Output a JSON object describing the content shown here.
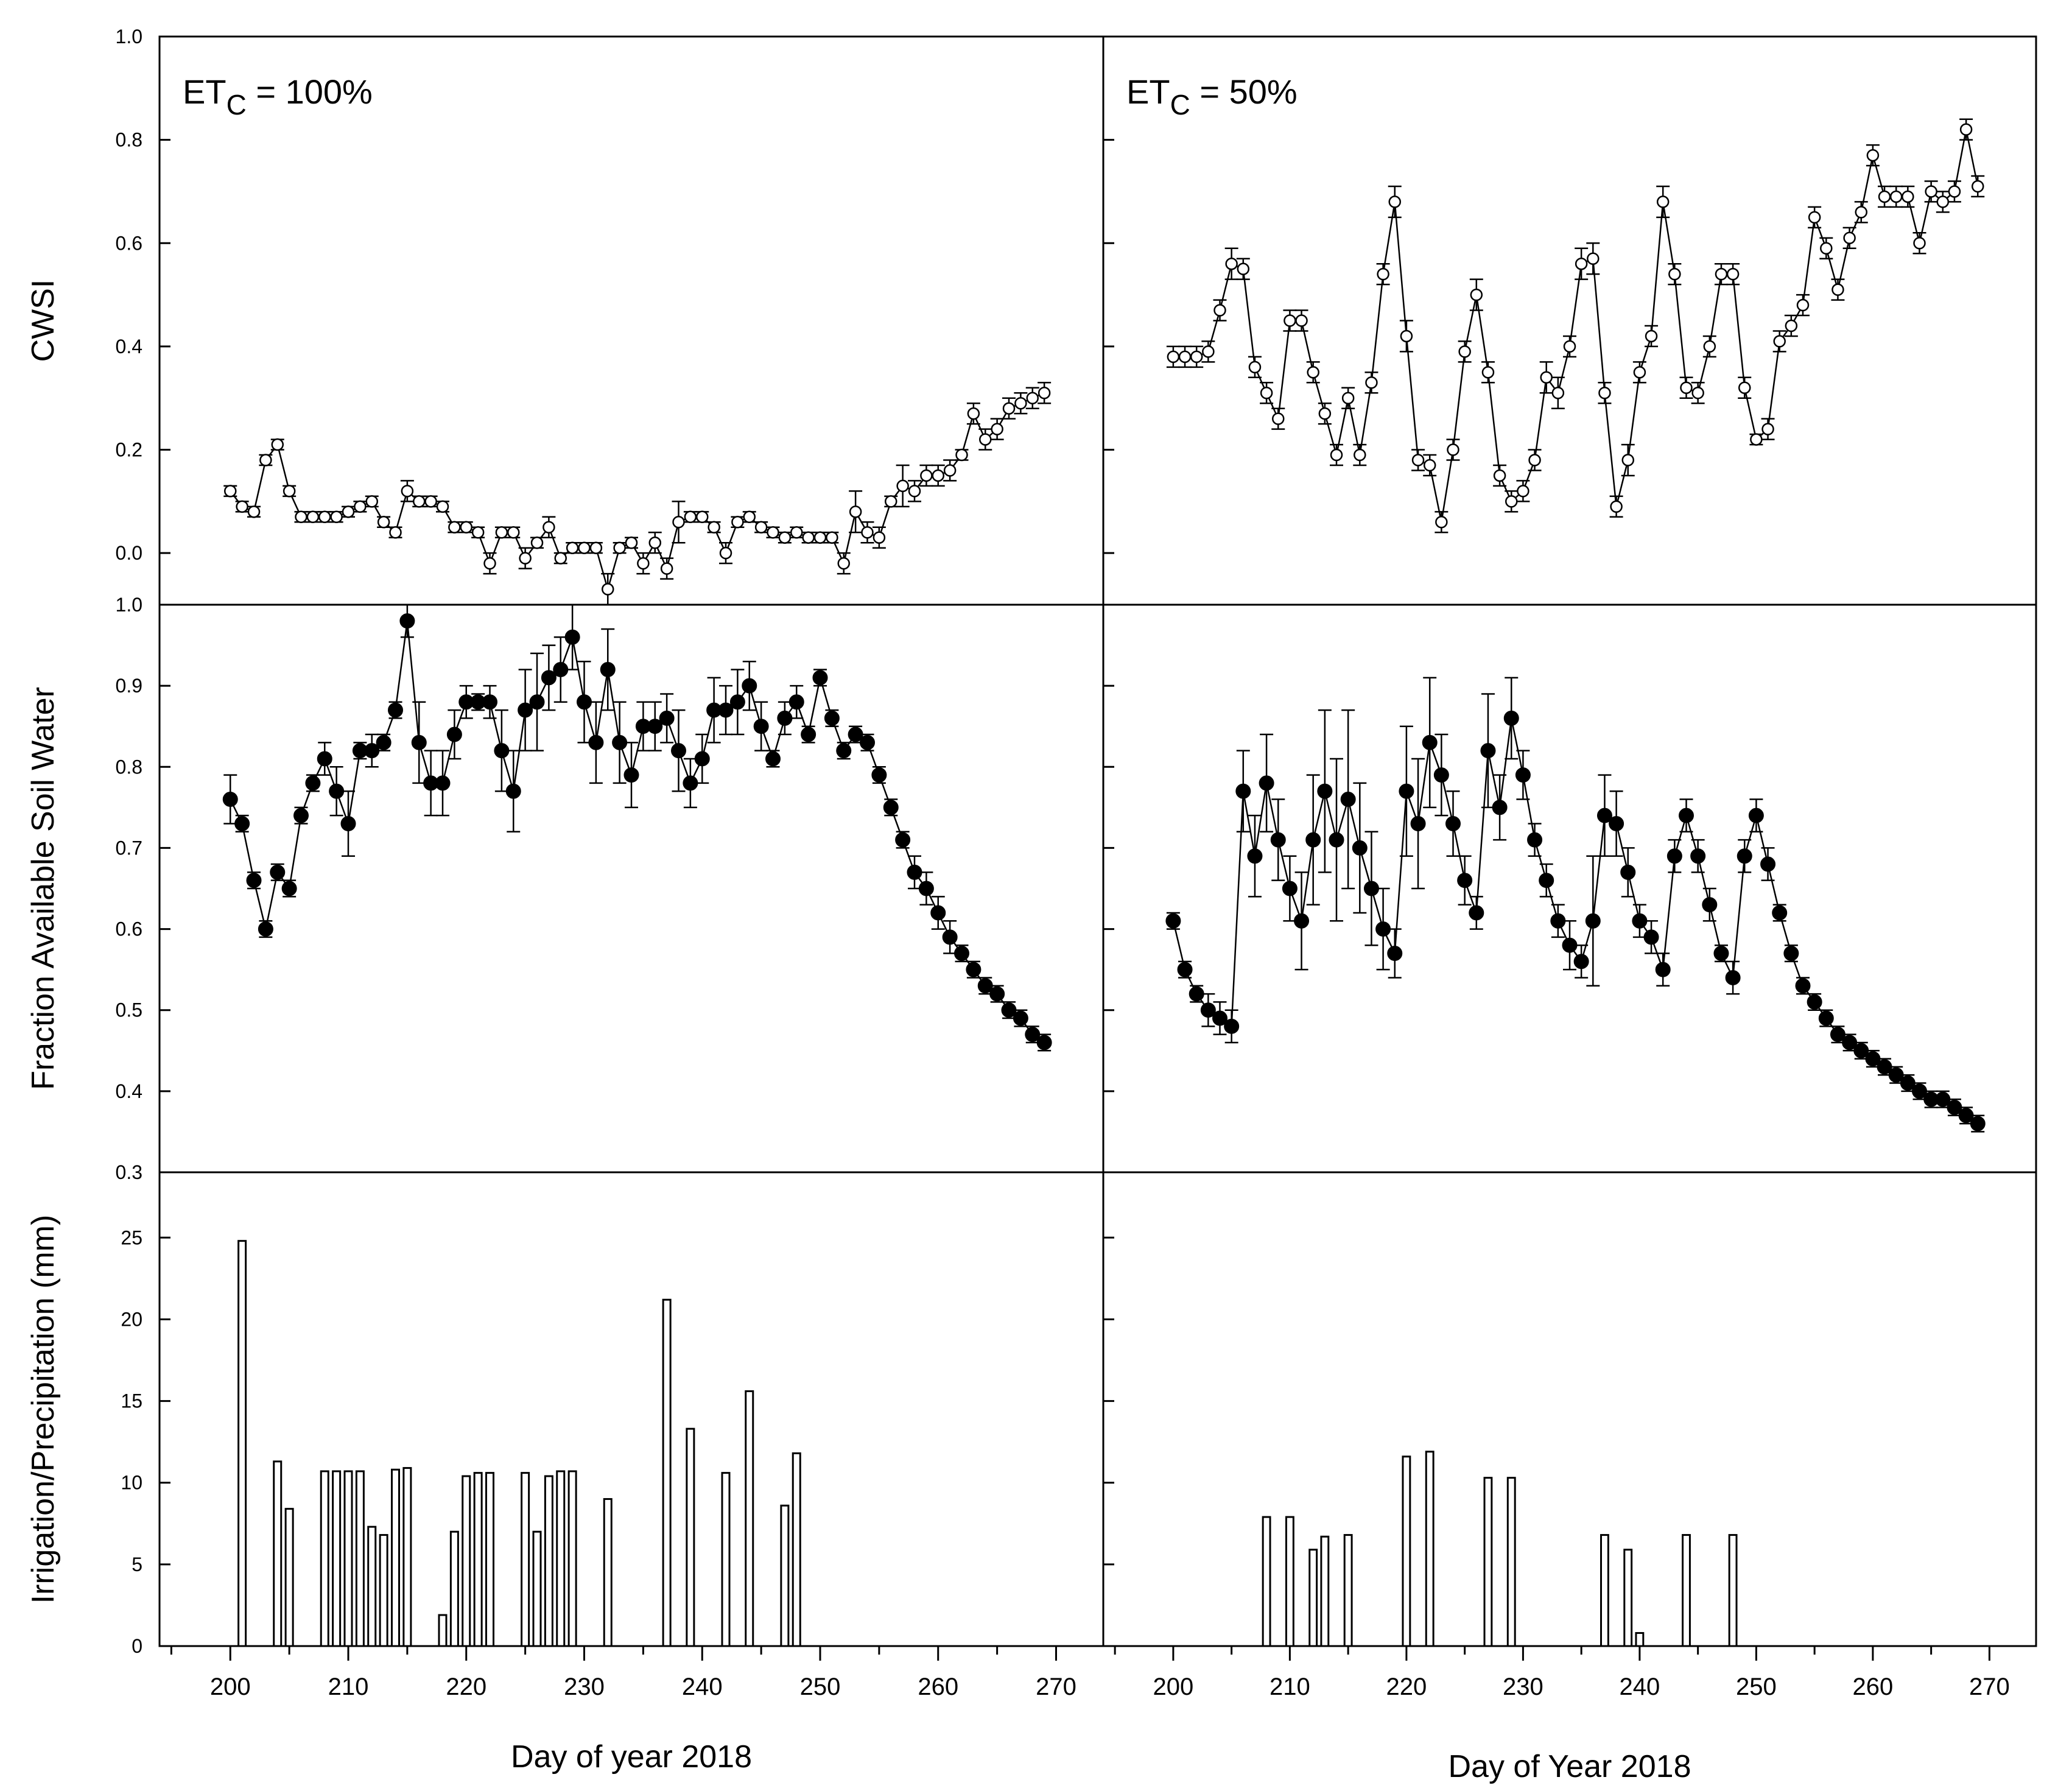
{
  "chart_data": {
    "type": "multi-panel",
    "x_range": [
      194,
      274
    ],
    "x_ticks": [
      200,
      210,
      220,
      230,
      240,
      250,
      260,
      270
    ],
    "column_labels": [
      {
        "base": "ET",
        "sub": "C",
        "rest": " = 100%"
      },
      {
        "base": "ET",
        "sub": "C",
        "rest": " = 50%"
      }
    ],
    "column_xlabels": [
      "Day of year 2018",
      "Day of Year 2018"
    ],
    "rows": [
      {
        "key": "cwsi",
        "type": "line",
        "ylabel": "CWSI",
        "ylim": [
          -0.1,
          1.0
        ],
        "y_ticks": [
          0.0,
          0.2,
          0.4,
          0.6,
          0.8,
          1.0
        ],
        "y_tick_labels": [
          "0.0",
          "0.2",
          "0.4",
          "0.6",
          "0.8",
          "1.0"
        ],
        "marker": "open-circle"
      },
      {
        "key": "fasw",
        "type": "line",
        "ylabel": "Fraction Available Soil Water",
        "ylim": [
          0.3,
          1.0
        ],
        "y_ticks": [
          0.3,
          0.4,
          0.5,
          0.6,
          0.7,
          0.8,
          0.9,
          1.0
        ],
        "y_tick_labels": [
          "0.3",
          "0.4",
          "0.5",
          "0.6",
          "0.7",
          "0.8",
          "0.9",
          "1.0"
        ],
        "marker": "filled-circle"
      },
      {
        "key": "irr",
        "type": "bar",
        "ylabel": "Irrigation/Precipitation (mm)",
        "ylim": [
          0,
          29
        ],
        "y_ticks": [
          0,
          5,
          10,
          15,
          20,
          25
        ],
        "y_tick_labels": [
          "0",
          "5",
          "10",
          "15",
          "20",
          "25"
        ]
      }
    ],
    "series": {
      "cwsi_100": {
        "x": [
          200,
          201,
          202,
          203,
          204,
          205,
          206,
          207,
          208,
          209,
          210,
          211,
          212,
          213,
          214,
          215,
          216,
          217,
          218,
          219,
          220,
          221,
          222,
          223,
          224,
          225,
          226,
          227,
          228,
          229,
          230,
          231,
          232,
          233,
          234,
          235,
          236,
          237,
          238,
          239,
          240,
          241,
          242,
          243,
          244,
          245,
          246,
          247,
          248,
          249,
          250,
          251,
          252,
          253,
          254,
          255,
          256,
          257,
          258,
          259,
          260,
          261,
          262,
          263,
          264,
          265,
          266,
          267,
          268,
          269
        ],
        "y": [
          0.12,
          0.09,
          0.08,
          0.18,
          0.21,
          0.12,
          0.07,
          0.07,
          0.07,
          0.07,
          0.08,
          0.09,
          0.1,
          0.06,
          0.04,
          0.12,
          0.1,
          0.1,
          0.09,
          0.05,
          0.05,
          0.04,
          -0.02,
          0.04,
          0.04,
          -0.01,
          0.02,
          0.05,
          -0.01,
          0.01,
          0.01,
          0.01,
          -0.07,
          0.01,
          0.02,
          -0.02,
          0.02,
          -0.03,
          0.06,
          0.07,
          0.07,
          0.05,
          0.0,
          0.06,
          0.07,
          0.05,
          0.04,
          0.03,
          0.04,
          0.03,
          0.03,
          0.03,
          -0.02,
          0.08,
          0.04,
          0.03,
          0.1,
          0.13,
          0.12,
          0.15,
          0.15,
          0.16,
          0.19,
          0.27,
          0.22,
          0.24,
          0.28,
          0.29,
          0.3,
          0.31
        ],
        "err": [
          0.01,
          0.01,
          0.01,
          0.01,
          0.01,
          0.01,
          0.01,
          0.01,
          0.01,
          0.01,
          0.01,
          0.01,
          0.01,
          0.01,
          0.01,
          0.02,
          0.01,
          0.01,
          0.01,
          0.01,
          0.01,
          0.01,
          0.02,
          0.01,
          0.01,
          0.02,
          0.01,
          0.02,
          0.01,
          0.01,
          0.01,
          0.01,
          0.03,
          0.01,
          0.01,
          0.02,
          0.02,
          0.02,
          0.04,
          0.01,
          0.01,
          0.01,
          0.02,
          0.01,
          0.01,
          0.01,
          0.01,
          0.01,
          0.01,
          0.01,
          0.01,
          0.01,
          0.02,
          0.04,
          0.02,
          0.02,
          0.01,
          0.04,
          0.02,
          0.02,
          0.02,
          0.02,
          0.01,
          0.02,
          0.02,
          0.02,
          0.02,
          0.02,
          0.02,
          0.02
        ]
      },
      "cwsi_50": {
        "x": [
          200,
          201,
          202,
          203,
          204,
          205,
          206,
          207,
          208,
          209,
          210,
          211,
          212,
          213,
          214,
          215,
          216,
          217,
          218,
          219,
          220,
          221,
          222,
          223,
          224,
          225,
          226,
          227,
          228,
          229,
          230,
          231,
          232,
          233,
          234,
          235,
          236,
          237,
          238,
          239,
          240,
          241,
          242,
          243,
          244,
          245,
          246,
          247,
          248,
          249,
          250,
          251,
          252,
          253,
          254,
          255,
          256,
          257,
          258,
          259,
          260,
          261,
          262,
          263,
          264,
          265,
          266,
          267,
          268,
          269
        ],
        "y": [
          0.38,
          0.38,
          0.38,
          0.39,
          0.47,
          0.56,
          0.55,
          0.36,
          0.31,
          0.26,
          0.45,
          0.45,
          0.35,
          0.27,
          0.19,
          0.3,
          0.19,
          0.33,
          0.54,
          0.68,
          0.42,
          0.18,
          0.17,
          0.06,
          0.2,
          0.39,
          0.5,
          0.35,
          0.15,
          0.1,
          0.12,
          0.18,
          0.34,
          0.31,
          0.4,
          0.56,
          0.57,
          0.31,
          0.09,
          0.18,
          0.35,
          0.42,
          0.68,
          0.54,
          0.32,
          0.31,
          0.4,
          0.54,
          0.54,
          0.32,
          0.22,
          0.24,
          0.41,
          0.44,
          0.48,
          0.65,
          0.59,
          0.51,
          0.61,
          0.66,
          0.77,
          0.69,
          0.69,
          0.69,
          0.6,
          0.7,
          0.68,
          0.7,
          0.82,
          0.71
        ],
        "err": [
          0.02,
          0.02,
          0.02,
          0.02,
          0.02,
          0.03,
          0.02,
          0.02,
          0.02,
          0.02,
          0.02,
          0.02,
          0.02,
          0.02,
          0.02,
          0.02,
          0.02,
          0.02,
          0.02,
          0.03,
          0.03,
          0.02,
          0.02,
          0.02,
          0.02,
          0.02,
          0.03,
          0.02,
          0.02,
          0.02,
          0.02,
          0.02,
          0.03,
          0.03,
          0.02,
          0.03,
          0.03,
          0.02,
          0.02,
          0.03,
          0.02,
          0.02,
          0.03,
          0.02,
          0.02,
          0.02,
          0.02,
          0.02,
          0.02,
          0.02,
          0.01,
          0.02,
          0.02,
          0.02,
          0.02,
          0.02,
          0.02,
          0.02,
          0.02,
          0.02,
          0.02,
          0.02,
          0.02,
          0.02,
          0.02,
          0.02,
          0.02,
          0.02,
          0.02,
          0.02
        ]
      },
      "fasw_100": {
        "x": [
          200,
          201,
          202,
          203,
          204,
          205,
          206,
          207,
          208,
          209,
          210,
          211,
          212,
          213,
          214,
          215,
          216,
          217,
          218,
          219,
          220,
          221,
          222,
          223,
          224,
          225,
          226,
          227,
          228,
          229,
          230,
          231,
          232,
          233,
          234,
          235,
          236,
          237,
          238,
          239,
          240,
          241,
          242,
          243,
          244,
          245,
          246,
          247,
          248,
          249,
          250,
          251,
          252,
          253,
          254,
          255,
          256,
          257,
          258,
          259,
          260,
          261,
          262,
          263,
          264,
          265,
          266,
          267,
          268,
          269
        ],
        "y": [
          0.76,
          0.73,
          0.66,
          0.6,
          0.67,
          0.65,
          0.74,
          0.78,
          0.81,
          0.77,
          0.73,
          0.82,
          0.82,
          0.83,
          0.87,
          0.98,
          0.83,
          0.78,
          0.78,
          0.84,
          0.88,
          0.88,
          0.88,
          0.82,
          0.77,
          0.87,
          0.88,
          0.91,
          0.92,
          0.96,
          0.88,
          0.83,
          0.92,
          0.83,
          0.79,
          0.85,
          0.85,
          0.86,
          0.82,
          0.78,
          0.81,
          0.87,
          0.87,
          0.88,
          0.9,
          0.85,
          0.81,
          0.86,
          0.88,
          0.84,
          0.91,
          0.86,
          0.82,
          0.84,
          0.83,
          0.79,
          0.75,
          0.71,
          0.67,
          0.65,
          0.62,
          0.59,
          0.57,
          0.55,
          0.53,
          0.52,
          0.5,
          0.49,
          0.47,
          0.46
        ],
        "err": [
          0.03,
          0.01,
          0.01,
          0.01,
          0.01,
          0.01,
          0.01,
          0.01,
          0.02,
          0.03,
          0.04,
          0.01,
          0.02,
          0.01,
          0.01,
          0.02,
          0.05,
          0.04,
          0.04,
          0.03,
          0.02,
          0.01,
          0.02,
          0.05,
          0.05,
          0.05,
          0.06,
          0.04,
          0.04,
          0.04,
          0.05,
          0.05,
          0.05,
          0.05,
          0.04,
          0.03,
          0.03,
          0.03,
          0.05,
          0.03,
          0.03,
          0.04,
          0.03,
          0.04,
          0.03,
          0.03,
          0.01,
          0.02,
          0.02,
          0.01,
          0.01,
          0.01,
          0.01,
          0.01,
          0.01,
          0.01,
          0.01,
          0.01,
          0.02,
          0.02,
          0.02,
          0.02,
          0.01,
          0.01,
          0.01,
          0.01,
          0.01,
          0.01,
          0.01,
          0.01
        ]
      },
      "fasw_50": {
        "x": [
          200,
          201,
          202,
          203,
          204,
          205,
          206,
          207,
          208,
          209,
          210,
          211,
          212,
          213,
          214,
          215,
          216,
          217,
          218,
          219,
          220,
          221,
          222,
          223,
          224,
          225,
          226,
          227,
          228,
          229,
          230,
          231,
          232,
          233,
          234,
          235,
          236,
          237,
          238,
          239,
          240,
          241,
          242,
          243,
          244,
          245,
          246,
          247,
          248,
          249,
          250,
          251,
          252,
          253,
          254,
          255,
          256,
          257,
          258,
          259,
          260,
          261,
          262,
          263,
          264,
          265,
          266,
          267,
          268,
          269
        ],
        "y": [
          0.61,
          0.55,
          0.52,
          0.5,
          0.49,
          0.48,
          0.77,
          0.69,
          0.78,
          0.71,
          0.65,
          0.61,
          0.71,
          0.77,
          0.71,
          0.76,
          0.7,
          0.65,
          0.6,
          0.57,
          0.77,
          0.73,
          0.83,
          0.79,
          0.73,
          0.66,
          0.62,
          0.82,
          0.75,
          0.86,
          0.79,
          0.71,
          0.66,
          0.61,
          0.58,
          0.56,
          0.61,
          0.74,
          0.73,
          0.67,
          0.61,
          0.59,
          0.55,
          0.69,
          0.74,
          0.69,
          0.63,
          0.57,
          0.54,
          0.69,
          0.74,
          0.68,
          0.62,
          0.57,
          0.53,
          0.51,
          0.49,
          0.47,
          0.46,
          0.45,
          0.44,
          0.43,
          0.42,
          0.41,
          0.4,
          0.39,
          0.39,
          0.38,
          0.37,
          0.36
        ],
        "err": [
          0.01,
          0.01,
          0.01,
          0.02,
          0.02,
          0.02,
          0.05,
          0.05,
          0.06,
          0.05,
          0.04,
          0.06,
          0.08,
          0.1,
          0.1,
          0.11,
          0.08,
          0.07,
          0.05,
          0.03,
          0.08,
          0.08,
          0.08,
          0.05,
          0.04,
          0.03,
          0.02,
          0.07,
          0.04,
          0.05,
          0.03,
          0.02,
          0.02,
          0.02,
          0.03,
          0.02,
          0.08,
          0.05,
          0.04,
          0.03,
          0.02,
          0.02,
          0.02,
          0.02,
          0.02,
          0.02,
          0.02,
          0.01,
          0.02,
          0.02,
          0.02,
          0.02,
          0.01,
          0.01,
          0.01,
          0.01,
          0.01,
          0.01,
          0.01,
          0.01,
          0.01,
          0.01,
          0.01,
          0.01,
          0.01,
          0.01,
          0.01,
          0.01,
          0.01,
          0.01
        ]
      },
      "irr_100": {
        "x": [
          201,
          204,
          205,
          208,
          209,
          210,
          211,
          212,
          213,
          214,
          215,
          218,
          219,
          220,
          221,
          222,
          225,
          226,
          227,
          228,
          229,
          232,
          237,
          239,
          242,
          244,
          247,
          248
        ],
        "y": [
          24.8,
          11.3,
          8.4,
          10.7,
          10.7,
          10.7,
          10.7,
          7.3,
          6.8,
          10.8,
          10.9,
          1.9,
          7.0,
          10.4,
          10.6,
          10.6,
          10.6,
          7.0,
          10.4,
          10.7,
          10.7,
          9.0,
          21.2,
          13.3,
          10.6,
          15.6,
          8.6,
          11.8
        ]
      },
      "irr_50": {
        "x": [
          208,
          210,
          212,
          213,
          215,
          220,
          222,
          227,
          229,
          237,
          239,
          240,
          244,
          248
        ],
        "y": [
          7.9,
          7.9,
          5.9,
          6.7,
          6.8,
          11.6,
          11.9,
          10.3,
          10.3,
          6.8,
          5.9,
          0.8,
          6.8,
          6.8
        ]
      }
    }
  }
}
